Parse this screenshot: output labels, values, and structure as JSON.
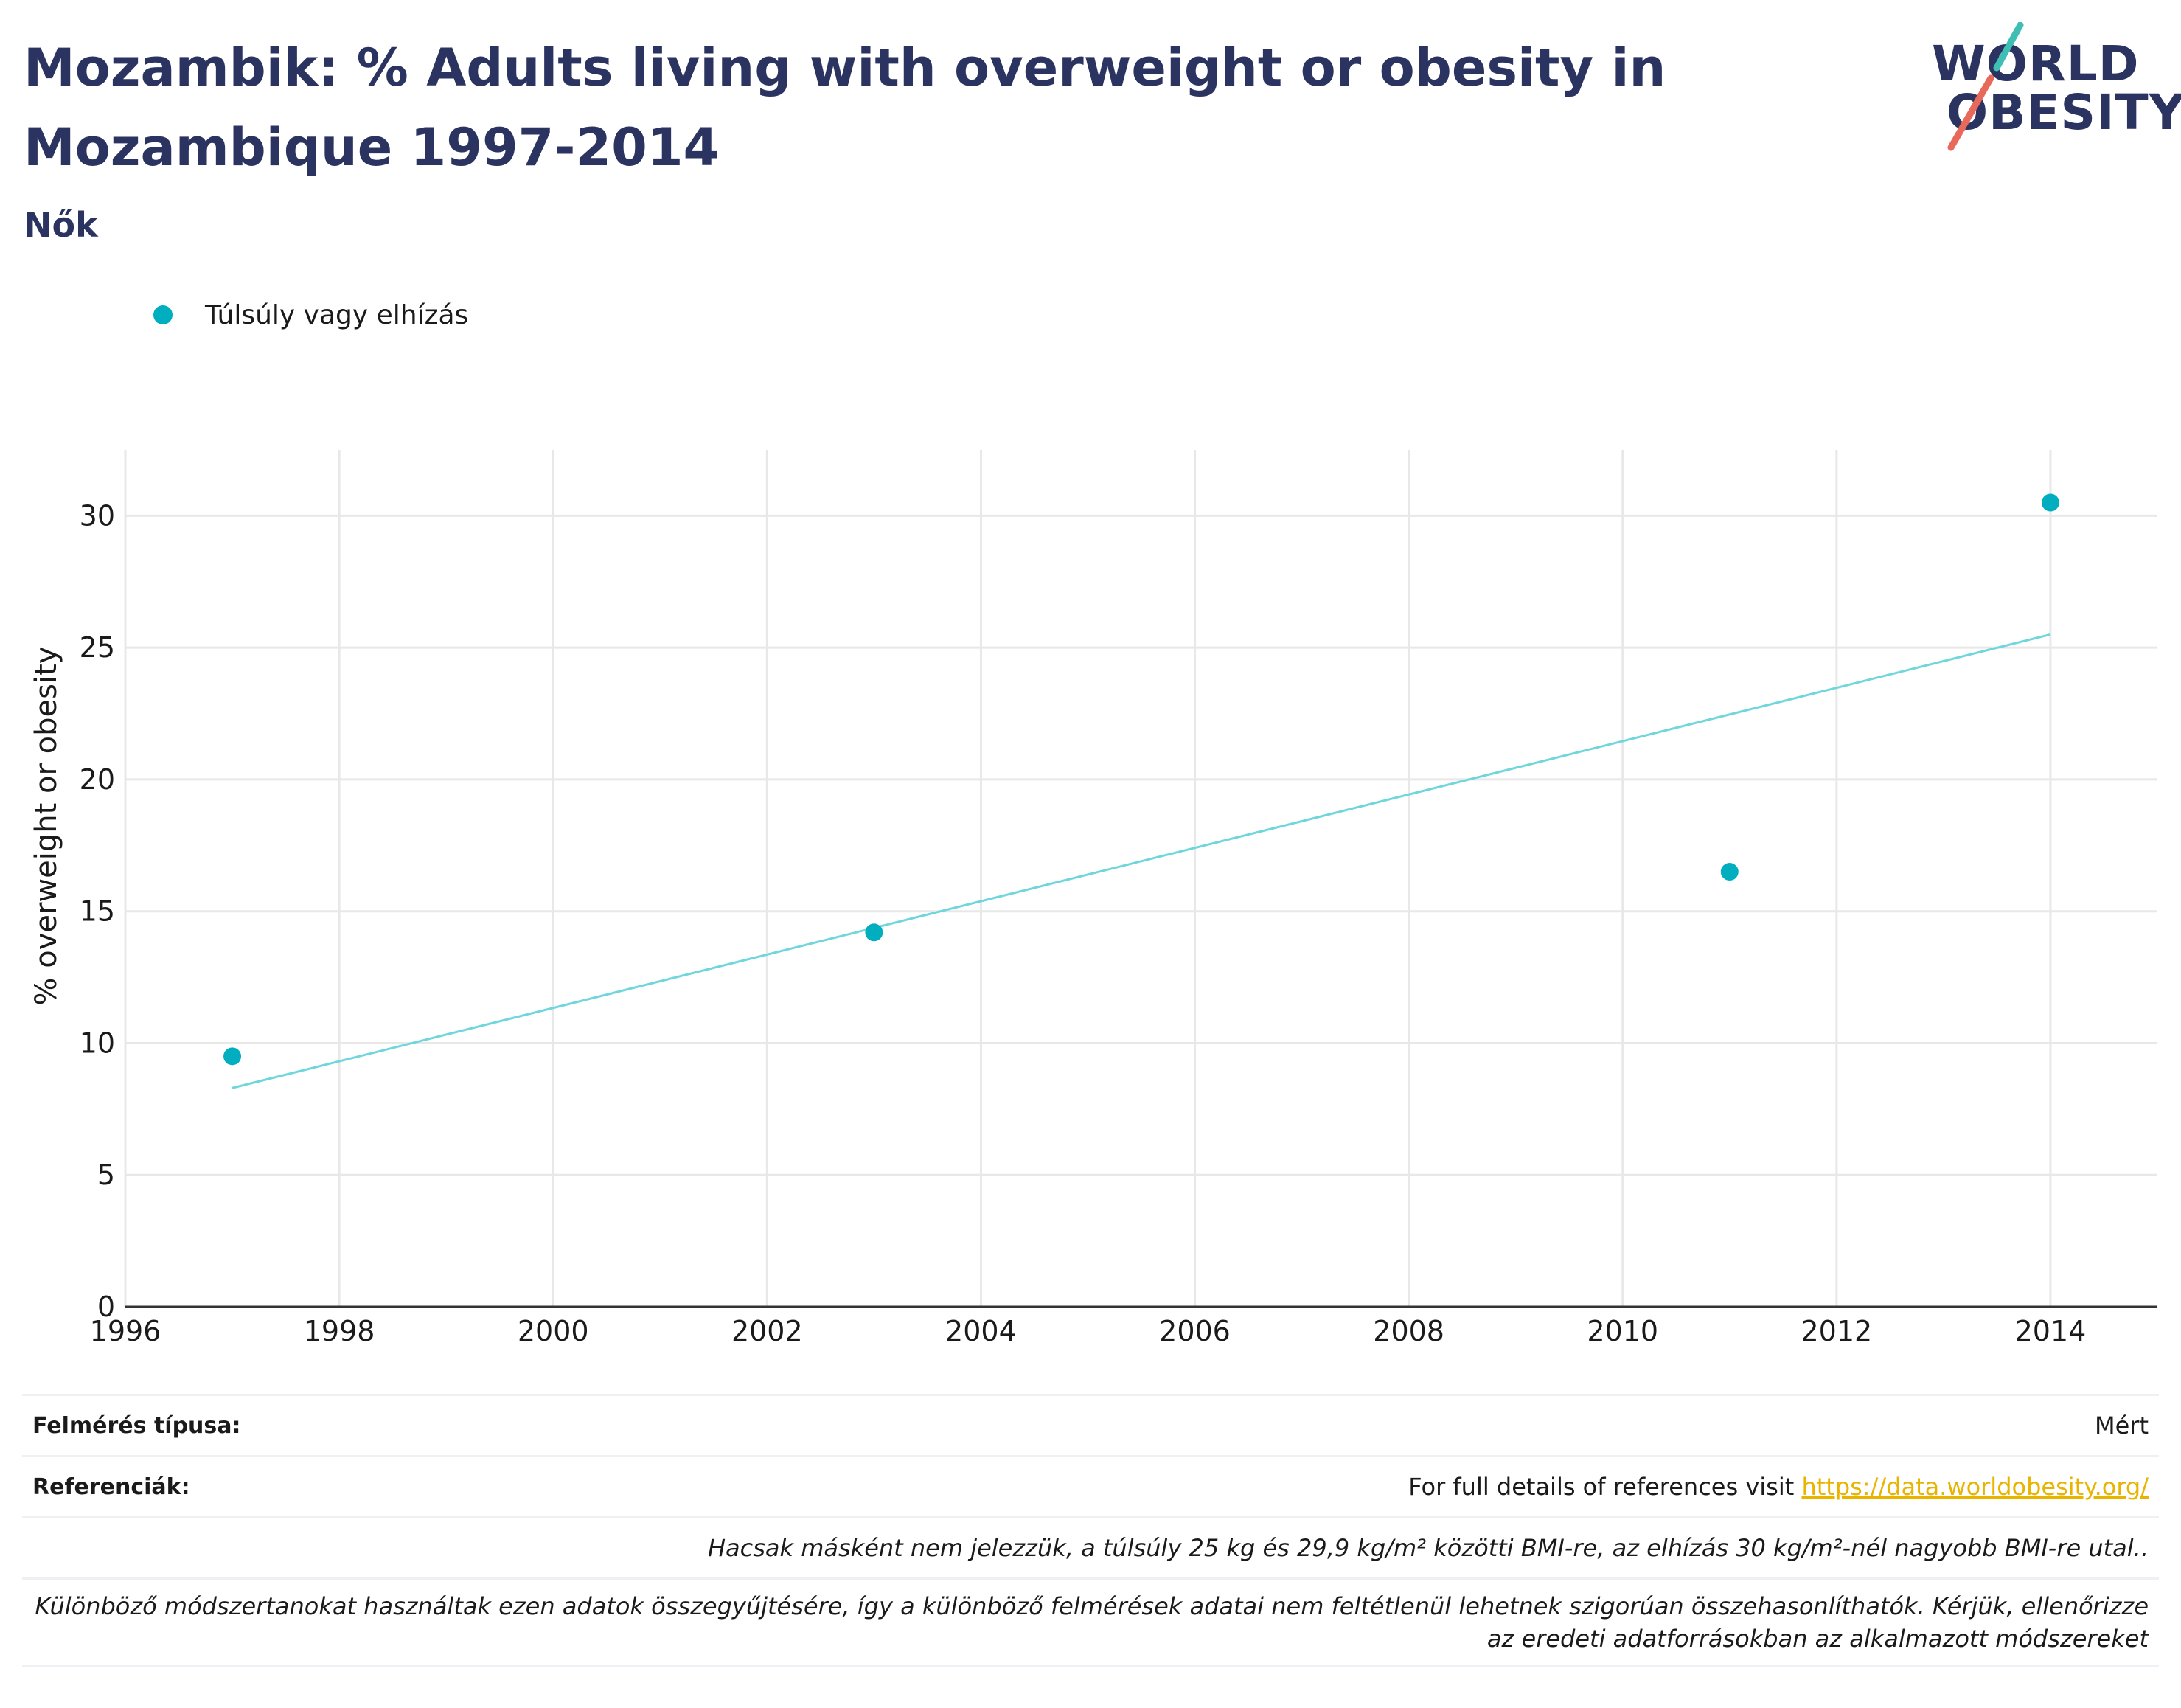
{
  "header": {
    "title": "Mozambik: % Adults living with overweight or obesity in Mozambique 1997-2014",
    "subtitle": "Nők"
  },
  "logo": {
    "line1": "WORLD",
    "line2": "OBESITY"
  },
  "legend": {
    "label": "Túlsúly vagy elhízás"
  },
  "colors": {
    "point": "#00aec0",
    "trend": "#6fd6dc",
    "title": "#2b3460",
    "grid": "#e8e8e8",
    "link": "#e8b400"
  },
  "chart_data": {
    "type": "scatter",
    "title": "Mozambik: % Adults living with overweight or obesity in Mozambique 1997-2014",
    "subtitle": "Nők",
    "xlabel": "",
    "ylabel": "% overweight or obesity",
    "xlim": [
      1996,
      2015
    ],
    "ylim": [
      0,
      32.5
    ],
    "x_ticks": [
      1996,
      1998,
      2000,
      2002,
      2004,
      2006,
      2008,
      2010,
      2012,
      2014
    ],
    "y_ticks": [
      0,
      5,
      10,
      15,
      20,
      25,
      30
    ],
    "grid": true,
    "legend_position": "top-left",
    "series": [
      {
        "name": "Túlsúly vagy elhízás",
        "x": [
          1997,
          2003,
          2011,
          2014
        ],
        "y": [
          9.5,
          14.2,
          16.5,
          30.5
        ]
      }
    ],
    "trendline": {
      "x": [
        1997,
        2014
      ],
      "y": [
        8.3,
        25.5
      ]
    }
  },
  "info": {
    "survey_label": "Felmérés típusa:",
    "survey_value": "Mért",
    "refs_label": "Referenciák:",
    "refs_text": "For full details of references visit ",
    "refs_link": "https://data.worldobesity.org/",
    "note1": "Hacsak másként nem jelezzük, a túlsúly 25 kg és 29,9 kg/m² közötti BMI-re, az elhízás 30 kg/m²-nél nagyobb BMI-re utal..",
    "note2": "Különböző módszertanokat használtak ezen adatok összegyűjtésére, így a különböző felmérések adatai nem feltétlenül lehetnek szigorúan összehasonlíthatók. Kérjük, ellenőrizze az eredeti adatforrásokban az alkalmazott módszereket"
  }
}
